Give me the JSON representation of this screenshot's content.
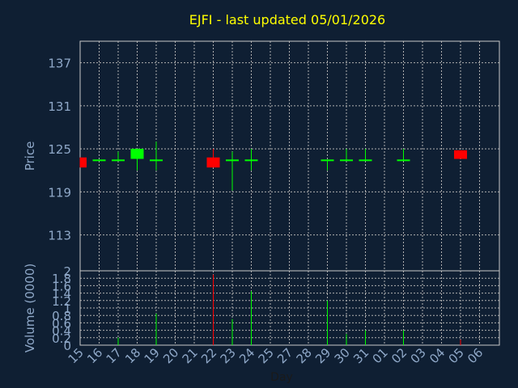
{
  "title": "EJFI - last updated 05/01/2026",
  "colors": {
    "background": "#0f1f33",
    "plot_border": "#c8c8c8",
    "grid": "#b0b0b0",
    "title": "#ffff00",
    "axis_text": "#8fa8c8",
    "up": "#00ff00",
    "down": "#ff0000"
  },
  "chart_data": [
    {
      "type": "candlestick",
      "ylabel": "Price",
      "ylim": [
        108,
        140
      ],
      "yticks": [
        113,
        119,
        125,
        131,
        137
      ],
      "grid": true,
      "categories": [
        "15",
        "16",
        "17",
        "18",
        "19",
        "20",
        "21",
        "22",
        "23",
        "24",
        "25",
        "27",
        "28",
        "29",
        "30",
        "31",
        "01",
        "02",
        "03",
        "04",
        "05",
        "06"
      ],
      "candles": [
        {
          "day": "15",
          "open": 123.8,
          "high": 123.8,
          "low": 122.4,
          "close": 122.4
        },
        {
          "day": "16",
          "open": 123.4,
          "high": 123.4,
          "low": 123.4,
          "close": 123.4
        },
        {
          "day": "17",
          "open": 123.4,
          "high": 124.6,
          "low": 123.4,
          "close": 123.4
        },
        {
          "day": "18",
          "open": 123.6,
          "high": 125.0,
          "low": 122.0,
          "close": 125.0
        },
        {
          "day": "19",
          "open": 123.4,
          "high": 126.0,
          "low": 122.0,
          "close": 123.4
        },
        {
          "day": "22",
          "open": 123.8,
          "high": 125.0,
          "low": 122.4,
          "close": 122.4
        },
        {
          "day": "23",
          "open": 123.4,
          "high": 124.6,
          "low": 119.2,
          "close": 123.4
        },
        {
          "day": "24",
          "open": 123.4,
          "high": 125.0,
          "low": 122.0,
          "close": 123.4
        },
        {
          "day": "29",
          "open": 123.4,
          "high": 123.4,
          "low": 122.0,
          "close": 123.4
        },
        {
          "day": "30",
          "open": 123.4,
          "high": 125.0,
          "low": 123.4,
          "close": 123.4
        },
        {
          "day": "31",
          "open": 123.4,
          "high": 125.0,
          "low": 123.4,
          "close": 123.4
        },
        {
          "day": "02",
          "open": 123.4,
          "high": 125.0,
          "low": 123.4,
          "close": 123.4
        },
        {
          "day": "05",
          "open": 124.8,
          "high": 124.8,
          "low": 123.6,
          "close": 123.6
        }
      ]
    },
    {
      "type": "bar",
      "ylabel": "Volume (0000)",
      "xlabel": "Day",
      "ylim": [
        0,
        2
      ],
      "yticks": [
        0,
        0.2,
        0.4,
        0.6,
        0.8,
        1.0,
        1.2,
        1.4,
        1.6,
        1.8,
        2
      ],
      "ytick_labels": [
        "0",
        "0.2",
        "0.4",
        "0.6",
        "0.8",
        "1",
        "1.2",
        "1.4",
        "1.6",
        "1.8",
        "2"
      ],
      "grid": true,
      "categories": [
        "15",
        "16",
        "17",
        "18",
        "19",
        "20",
        "21",
        "22",
        "23",
        "24",
        "25",
        "27",
        "28",
        "29",
        "30",
        "31",
        "01",
        "02",
        "03",
        "04",
        "05",
        "06"
      ],
      "bars": [
        {
          "day": "17",
          "value": 0.2,
          "direction": "up"
        },
        {
          "day": "19",
          "value": 0.85,
          "direction": "up"
        },
        {
          "day": "22",
          "value": 1.9,
          "direction": "down"
        },
        {
          "day": "23",
          "value": 0.7,
          "direction": "up"
        },
        {
          "day": "24",
          "value": 1.45,
          "direction": "up"
        },
        {
          "day": "29",
          "value": 1.2,
          "direction": "up"
        },
        {
          "day": "30",
          "value": 0.3,
          "direction": "up"
        },
        {
          "day": "31",
          "value": 0.4,
          "direction": "up"
        },
        {
          "day": "02",
          "value": 0.4,
          "direction": "up"
        },
        {
          "day": "05",
          "value": 0.15,
          "direction": "down"
        }
      ]
    }
  ]
}
